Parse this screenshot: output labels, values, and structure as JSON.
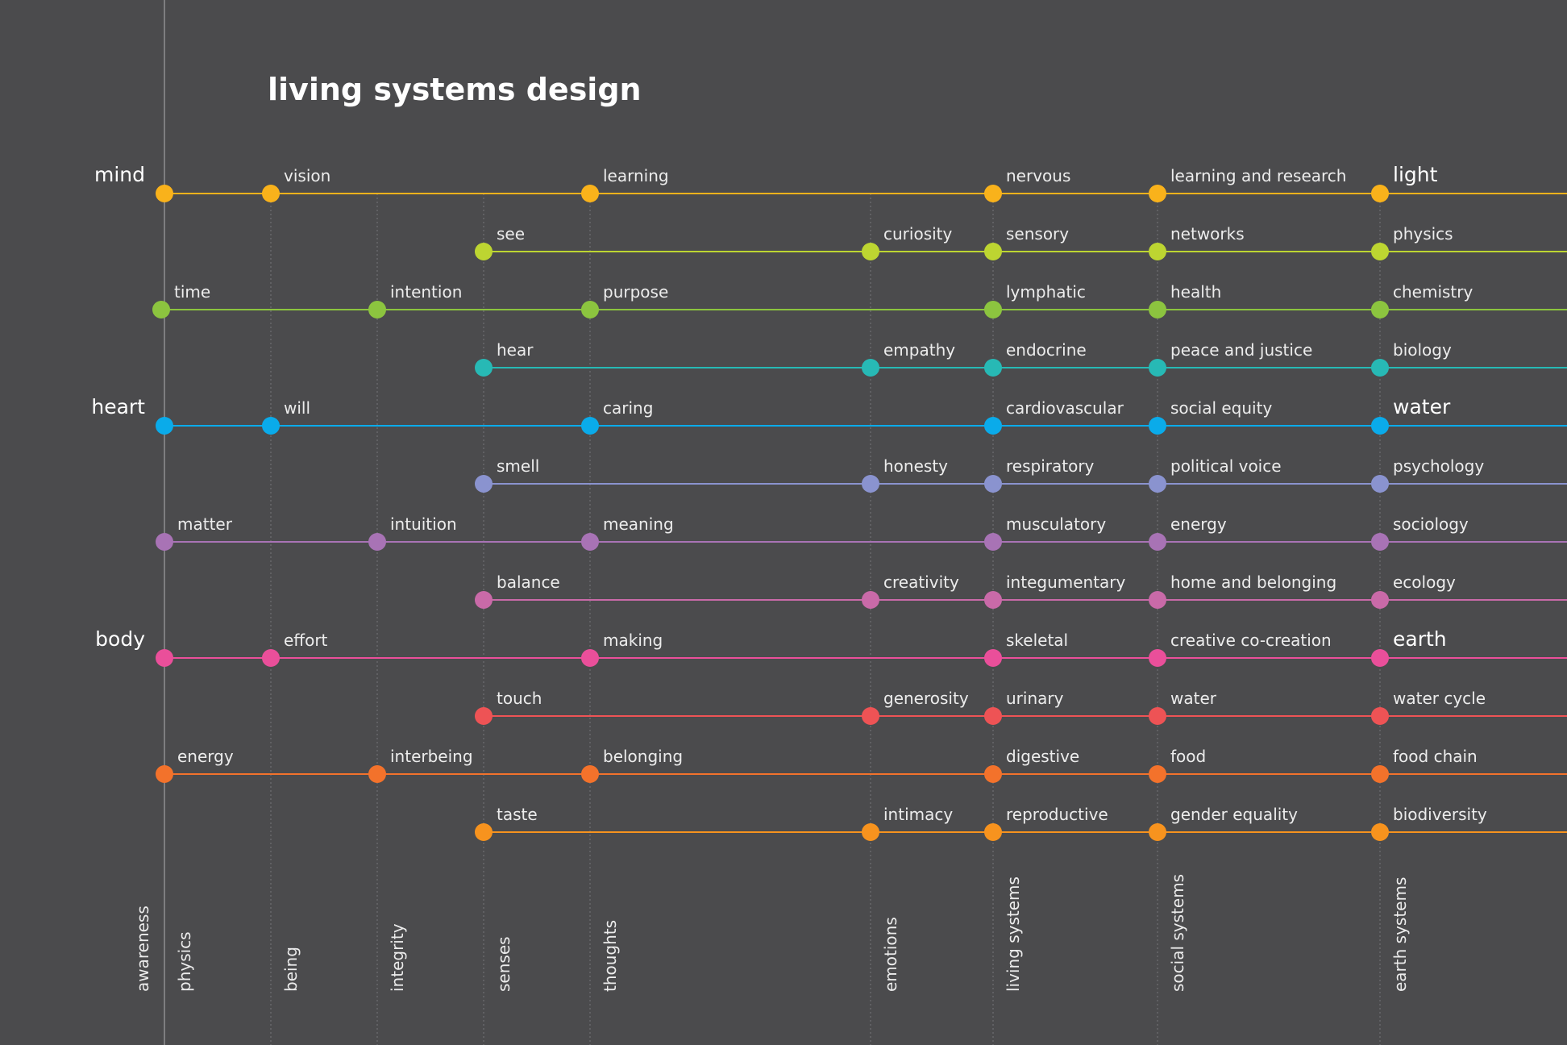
{
  "title": "living systems design",
  "groups": [
    {
      "label": "mind",
      "row": 0
    },
    {
      "label": "heart",
      "row": 4
    },
    {
      "label": "body",
      "row": 8
    }
  ],
  "columns": [
    {
      "key": "awareness",
      "label": "awareness",
      "guide": true
    },
    {
      "key": "physics",
      "label": "physics",
      "guide": false
    },
    {
      "key": "being",
      "label": "being",
      "guide": true
    },
    {
      "key": "integrity",
      "label": "integrity",
      "guide": true
    },
    {
      "key": "senses",
      "label": "senses",
      "guide": true
    },
    {
      "key": "thoughts",
      "label": "thoughts",
      "guide": true
    },
    {
      "key": "emotions",
      "label": "emotions",
      "guide": true
    },
    {
      "key": "living",
      "label": "living systems",
      "guide": true
    },
    {
      "key": "social",
      "label": "social systems",
      "guide": true
    },
    {
      "key": "earth",
      "label": "earth systems",
      "guide": true
    }
  ],
  "rows": [
    {
      "color": "#f9b21b",
      "nodes": [
        {
          "col": "awareness",
          "label": ""
        },
        {
          "col": "being",
          "label": "vision"
        },
        {
          "col": "thoughts",
          "label": "learning"
        },
        {
          "col": "living",
          "label": "nervous"
        },
        {
          "col": "social",
          "label": "learning and research"
        },
        {
          "col": "earth",
          "label": "light",
          "major": true
        }
      ]
    },
    {
      "color": "#bdd531",
      "nodes": [
        {
          "col": "senses",
          "label": "see"
        },
        {
          "col": "emotions",
          "label": "curiosity"
        },
        {
          "col": "living",
          "label": "sensory"
        },
        {
          "col": "social",
          "label": "networks"
        },
        {
          "col": "earth",
          "label": "physics"
        }
      ]
    },
    {
      "color": "#8cc43f",
      "nodes": [
        {
          "col": "physics",
          "label": "time"
        },
        {
          "col": "integrity",
          "label": "intention"
        },
        {
          "col": "thoughts",
          "label": "purpose"
        },
        {
          "col": "living",
          "label": "lymphatic"
        },
        {
          "col": "social",
          "label": "health"
        },
        {
          "col": "earth",
          "label": "chemistry"
        }
      ]
    },
    {
      "color": "#27b9b5",
      "nodes": [
        {
          "col": "senses",
          "label": "hear"
        },
        {
          "col": "emotions",
          "label": "empathy"
        },
        {
          "col": "living",
          "label": "endocrine"
        },
        {
          "col": "social",
          "label": "peace and justice"
        },
        {
          "col": "earth",
          "label": "biology"
        }
      ]
    },
    {
      "color": "#0aabea",
      "nodes": [
        {
          "col": "awareness",
          "label": ""
        },
        {
          "col": "being",
          "label": "will"
        },
        {
          "col": "thoughts",
          "label": "caring"
        },
        {
          "col": "living",
          "label": "cardiovascular"
        },
        {
          "col": "social",
          "label": "social equity"
        },
        {
          "col": "earth",
          "label": "water",
          "major": true
        }
      ]
    },
    {
      "color": "#8a93cf",
      "nodes": [
        {
          "col": "senses",
          "label": "smell"
        },
        {
          "col": "emotions",
          "label": "honesty"
        },
        {
          "col": "living",
          "label": "respiratory"
        },
        {
          "col": "social",
          "label": "political voice"
        },
        {
          "col": "earth",
          "label": "psychology"
        }
      ]
    },
    {
      "color": "#a873b5",
      "nodes": [
        {
          "col": "awareness",
          "label": "matter"
        },
        {
          "col": "integrity",
          "label": "intuition"
        },
        {
          "col": "thoughts",
          "label": "meaning"
        },
        {
          "col": "living",
          "label": "musculatory"
        },
        {
          "col": "social",
          "label": "energy"
        },
        {
          "col": "earth",
          "label": "sociology"
        }
      ]
    },
    {
      "color": "#c96aa8",
      "nodes": [
        {
          "col": "senses",
          "label": "balance"
        },
        {
          "col": "emotions",
          "label": "creativity"
        },
        {
          "col": "living",
          "label": "integumentary"
        },
        {
          "col": "social",
          "label": "home and belonging"
        },
        {
          "col": "earth",
          "label": "ecology"
        }
      ]
    },
    {
      "color": "#ea4f9a",
      "nodes": [
        {
          "col": "awareness",
          "label": ""
        },
        {
          "col": "being",
          "label": "effort"
        },
        {
          "col": "thoughts",
          "label": "making"
        },
        {
          "col": "living",
          "label": "skeletal"
        },
        {
          "col": "social",
          "label": "creative co-creation"
        },
        {
          "col": "earth",
          "label": "earth",
          "major": true
        }
      ]
    },
    {
      "color": "#ee5355",
      "nodes": [
        {
          "col": "senses",
          "label": "touch"
        },
        {
          "col": "emotions",
          "label": "generosity"
        },
        {
          "col": "living",
          "label": "urinary"
        },
        {
          "col": "social",
          "label": "water"
        },
        {
          "col": "earth",
          "label": "water cycle"
        }
      ]
    },
    {
      "color": "#f3722b",
      "nodes": [
        {
          "col": "awareness",
          "label": "energy"
        },
        {
          "col": "integrity",
          "label": "interbeing"
        },
        {
          "col": "thoughts",
          "label": "belonging"
        },
        {
          "col": "living",
          "label": "digestive"
        },
        {
          "col": "social",
          "label": "food"
        },
        {
          "col": "earth",
          "label": "food chain"
        }
      ]
    },
    {
      "color": "#f7931e",
      "nodes": [
        {
          "col": "senses",
          "label": "taste"
        },
        {
          "col": "emotions",
          "label": "intimacy"
        },
        {
          "col": "living",
          "label": "reproductive"
        },
        {
          "col": "social",
          "label": "gender equality"
        },
        {
          "col": "earth",
          "label": "biodiversity"
        }
      ]
    }
  ]
}
